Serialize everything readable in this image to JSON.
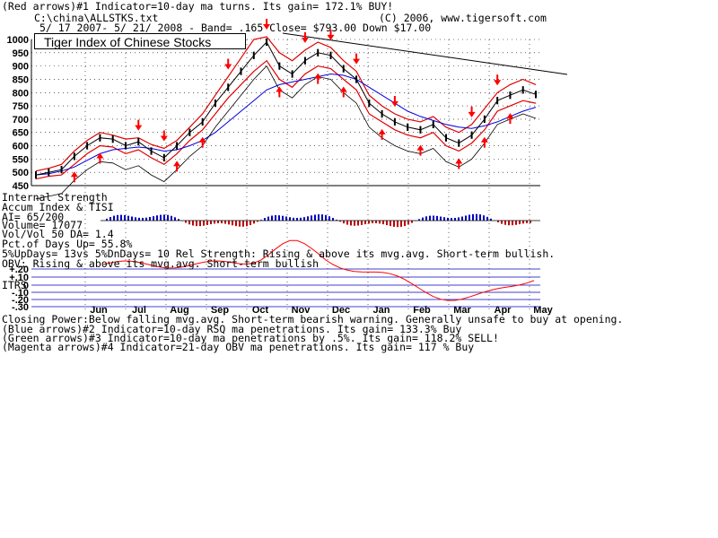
{
  "header": {
    "line1": "(Red arrows)#1 Indicator=10-day ma turns. Its gain= 172.1% BUY!",
    "path": "C:\\china\\ALLSTKS.txt",
    "copyright": "(C) 2006, www.tigersoft.com",
    "range_line": "5/ 17 2007- 5/ 21/ 2008 -  Band= .165   Close= $793.00   Down $17.00"
  },
  "chart_title": "Tiger Index of Chinese Stocks",
  "indicator_labels": {
    "internal_strength": "Internal Strength",
    "accum": "Accum Index & TISI",
    "ai": "AI= 65/200",
    "volume": "Volume= 17077",
    "vol_ratio": "Vol/Vol 50 DA= 1.4",
    "pct_up": "Pct.of Days Up= 55.8%",
    "updown": "5%UpDays= 13vs 5%DnDays= 10   Rel Strength: Rising & above its mvg.avg. Short-term bullish.",
    "obv": "OBV: Rising & above its mvg.avg. Short-term bullish"
  },
  "itrs": {
    "label": "ITRS",
    "ticks": [
      "+.20",
      "+.10",
      "0",
      "-.10",
      "-.20",
      "-.30"
    ]
  },
  "footer": {
    "line1": "Closing Power:Below falling mvg.avg. Short-term bearish warning. Generally unsafe to buy at opening.",
    "line2": "(Blue arrows)#2 Indicator=10-day RSQ ma penetrations. Its gain= 133.3% Buy",
    "line3": "(Green arrows)#3 Indicator=10-day ma penetrations by .5%. Its gain= 118.2% SELL!",
    "line4": "(Magenta arrows)#4 Indicator=21-day OBV ma penetrations. Its gain= 117 % Buy"
  },
  "colors": {
    "price": "#000000",
    "band_upper": "#e00000",
    "band_lower": "#e00000",
    "ma_blue": "#0000e0",
    "ma_magenta": "#e000e0",
    "arrows": "#ff0000",
    "itrs_line": "#ff0000",
    "itrs_grid": "#0000c0",
    "accum_pos": "#0000c0",
    "accum_neg": "#c00000"
  },
  "chart_data": {
    "type": "line",
    "title": "Tiger Index of Chinese Stocks",
    "x_labels": [
      "Jun",
      "Jul",
      "Aug",
      "Sep",
      "Oct",
      "Nov",
      "Dec",
      "Jan",
      "Feb",
      "Mar",
      "Apr",
      "May"
    ],
    "y_ticks": [
      1000,
      950,
      900,
      850,
      800,
      750,
      700,
      650,
      600,
      550,
      500,
      450
    ],
    "ylim": [
      450,
      1000
    ],
    "grid": true,
    "series": [
      {
        "name": "",
        "values": [
          490,
          500,
          510,
          560,
          600,
          630,
          625,
          600,
          615,
          580,
          555,
          600,
          650,
          690,
          760,
          820,
          880,
          940,
          990,
          900,
          870,
          920,
          950,
          940,
          890,
          850,
          760,
          720,
          690,
          670,
          660,
          680,
          630,
          610,
          640,
          700,
          770,
          790,
          810,
          793
        ]
      },
      {
        "name": "",
        "values": [
          505,
          515,
          530,
          580,
          620,
          650,
          640,
          625,
          630,
          605,
          590,
          620,
          670,
          720,
          790,
          860,
          930,
          1000,
          1010,
          950,
          920,
          960,
          990,
          970,
          920,
          880,
          790,
          750,
          720,
          700,
          690,
          710,
          670,
          650,
          680,
          740,
          800,
          830,
          850,
          830
        ]
      },
      {
        "name": "",
        "values": [
          475,
          485,
          490,
          530,
          570,
          600,
          595,
          570,
          585,
          555,
          530,
          570,
          620,
          660,
          720,
          780,
          830,
          880,
          920,
          850,
          820,
          870,
          900,
          890,
          850,
          810,
          720,
          690,
          660,
          640,
          630,
          650,
          600,
          580,
          610,
          660,
          730,
          750,
          770,
          760
        ]
      }
    ],
    "ma": [
      {
        "name": "",
        "values": [
          490,
          495,
          505,
          520,
          545,
          570,
          585,
          590,
          595,
          590,
          580,
          585,
          600,
          620,
          650,
          690,
          730,
          770,
          810,
          830,
          840,
          850,
          860,
          870,
          865,
          850,
          820,
          790,
          760,
          730,
          710,
          695,
          680,
          670,
          665,
          675,
          690,
          710,
          730,
          745
        ]
      }
    ],
    "red_arrows_up": [
      3,
      5,
      11,
      13,
      19,
      22,
      24,
      27,
      30,
      33,
      35,
      37
    ],
    "red_arrows_down": [
      8,
      10,
      15,
      18,
      21,
      23,
      25,
      28,
      34,
      36
    ]
  }
}
